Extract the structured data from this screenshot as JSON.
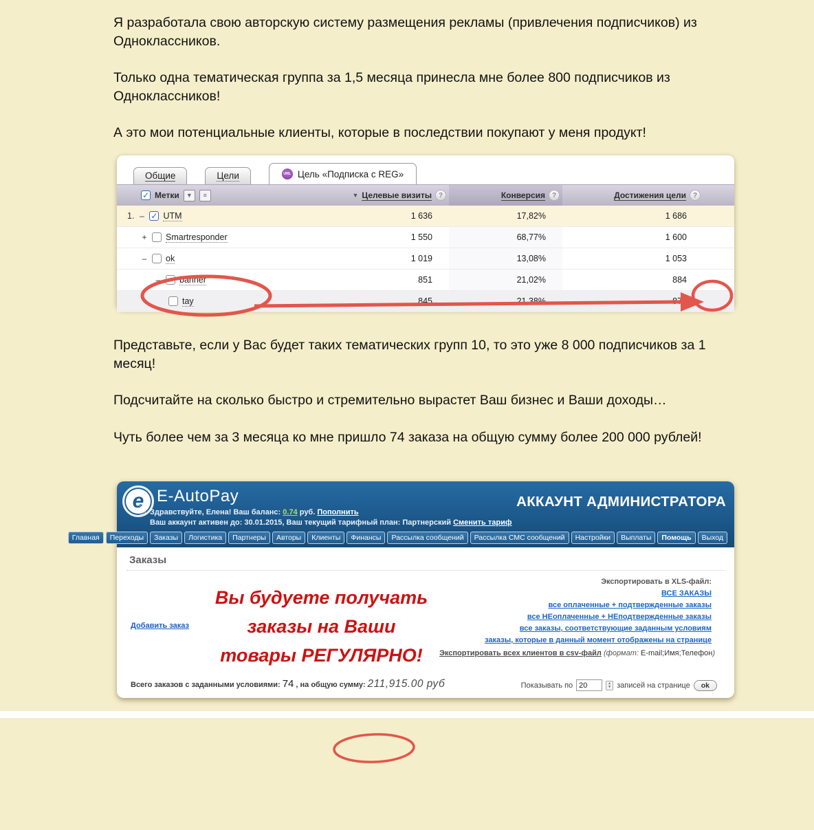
{
  "intro": {
    "p1": "Я разработала свою авторскую систему размещения рекламы (привлечения подписчиков) из Одноклассников.",
    "p2": "Только одна тематическая группа за 1,5 месяца принесла мне более 800 подписчиков из Одноклассников!",
    "p3": "А это мои потенциальные клиенты, которые в последствии покупают у меня продукт!"
  },
  "middle": {
    "p1": "Представьте, если у Вас будет таких тематических групп 10, то это уже 8 000 подписчиков за 1 месяц!",
    "p2": "Подсчитайте на сколько быстро и стремительно вырастет Ваш бизнес и Ваши доходы…",
    "p3": "Чуть более чем за 3 месяца ко мне пришло 74 заказа на общую сумму более 200 000 рублей!"
  },
  "metrika": {
    "tabs": [
      {
        "label": "Общие",
        "style": "solid"
      },
      {
        "label": "Цели",
        "style": "dotted"
      },
      {
        "label": "Цель «Подписка с REG»",
        "style": "active",
        "badge": "URL"
      }
    ],
    "header": {
      "labels_title": "Метки",
      "col_visits": "Целевые визиты",
      "col_conversion": "Конверсия",
      "col_goals": "Достижения цели",
      "sort_arrow": "▼",
      "help_glyph": "?"
    },
    "rows": [
      {
        "index": "1.",
        "toggle": "–",
        "checked": true,
        "label": "UTM",
        "visits": "1 636",
        "conversion": "17,82%",
        "goals": "1 686",
        "highlight": "cream",
        "indent": 0
      },
      {
        "index": "",
        "toggle": "+",
        "checked": false,
        "label": "Smartresponder",
        "visits": "1 550",
        "conversion": "68,77%",
        "goals": "1 600",
        "highlight": "",
        "indent": 1
      },
      {
        "index": "",
        "toggle": "–",
        "checked": false,
        "label": "ok",
        "visits": "1 019",
        "conversion": "13,08%",
        "goals": "1 053",
        "highlight": "",
        "indent": 1
      },
      {
        "index": "",
        "toggle": "–",
        "checked": false,
        "label": "banner",
        "visits": "851",
        "conversion": "21,02%",
        "goals": "884",
        "highlight": "",
        "indent": 2
      },
      {
        "index": "",
        "toggle": "",
        "checked": false,
        "label": "tay",
        "visits": "845",
        "conversion": "21,38%",
        "goals": "878",
        "highlight": "gray",
        "indent": 3
      }
    ],
    "annotation_color": "#e2564b"
  },
  "eautopay": {
    "brand": "E-AutoPay",
    "logo_letter": "e",
    "account_type": "АККАУНТ АДМИНИСТРАТОРА",
    "greeting_prefix": "Здравствуйте, Елена!  Ваш баланс: ",
    "balance": "0.74",
    "greeting_mid": " руб. ",
    "topup_link": "Пополнить",
    "active_prefix": "Ваш аккаунт активен до: 30.01.2015, Ваш текущий тарифный план: Партнерский ",
    "change_tariff_link": "Сменить тариф",
    "nav": [
      "Главная",
      "Переходы",
      "Заказы",
      "Логистика",
      "Партнеры",
      "Авторы",
      "Клиенты",
      "Финансы",
      "Рассылка сообщений",
      "Рассылка СМС сообщений",
      "Настройки",
      "Выплаты",
      "Помощь",
      "Выход"
    ],
    "nav_current": "Помощь",
    "section_title": "Заказы",
    "add_order_link": "Добавить заказ",
    "promo_lines": [
      "Вы будуете получать",
      "заказы на Ваши",
      "товары РЕГУЛЯРНО!"
    ],
    "export_xls_label": "Экспортировать в XLS-файл:",
    "export_links": [
      "ВСЕ ЗАКАЗЫ",
      "все оплаченные + подтвержденные заказы",
      "все НЕоплаченные + НЕподтвержденные заказы",
      "все заказы, соответствующие заданным условиям",
      "заказы, которые в данный момент отображены на странице"
    ],
    "export_csv_link": "Экспортировать всех клиентов в csv-файл",
    "export_csv_note_italic": " (формат: ",
    "export_csv_note_plain": "E-mail;Имя;Телефон",
    "export_csv_note_close": ")",
    "totals_prefix": "Всего заказов с заданными условиями:",
    "totals_count": "74",
    "totals_mid": ", на общую сумму:",
    "totals_sum": "211,915.00 руб",
    "pager_label1": "Показывать по",
    "pager_value": "20",
    "pager_label2": "записей на странице",
    "pager_ok": "ok"
  }
}
